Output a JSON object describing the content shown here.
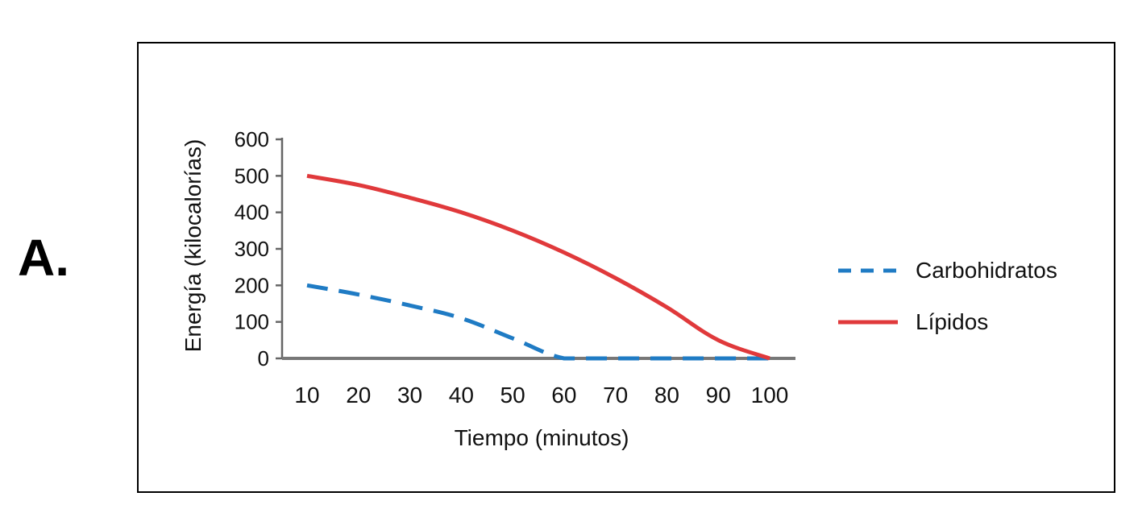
{
  "panel_label": "A.",
  "chart_data": {
    "type": "line",
    "xlabel": "Tiempo (minutos)",
    "ylabel": "Energía (kilocalorías)",
    "x": [
      10,
      20,
      30,
      40,
      50,
      60,
      70,
      80,
      90,
      100
    ],
    "ylim": [
      0,
      600
    ],
    "yticks": [
      0,
      100,
      200,
      300,
      400,
      500,
      600
    ],
    "grid": false,
    "legend_position": "right",
    "series": [
      {
        "name": "Carbohidratos",
        "color": "#1f7bc4",
        "line_style": "dashed",
        "values": [
          200,
          175,
          145,
          110,
          55,
          0,
          0,
          0,
          0,
          0
        ]
      },
      {
        "name": "Lípidos",
        "color": "#e0393b",
        "line_style": "solid",
        "values": [
          500,
          475,
          440,
          400,
          350,
          290,
          220,
          140,
          50,
          0
        ]
      }
    ]
  }
}
